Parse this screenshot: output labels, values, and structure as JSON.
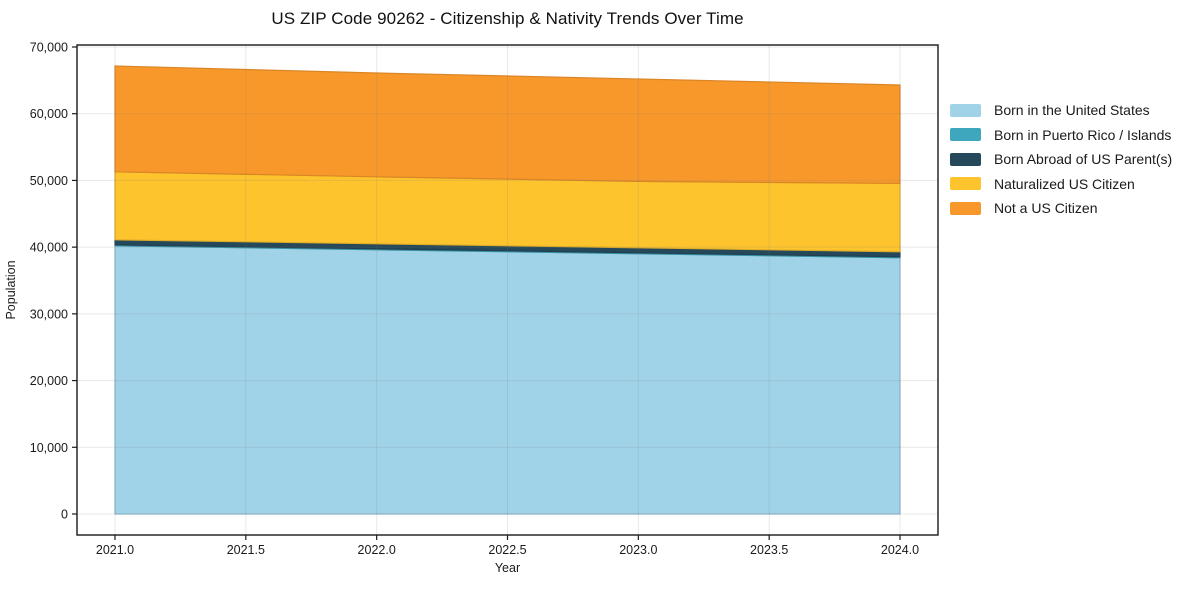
{
  "chart_data": {
    "type": "area",
    "stacked": true,
    "title": "US ZIP Code 90262 - Citizenship & Nativity Trends Over Time",
    "xlabel": "Year",
    "ylabel": "Population",
    "x": [
      2021,
      2022,
      2023,
      2024
    ],
    "series": [
      {
        "id": "born-us",
        "name": "Born in the United States",
        "color": "#A1D3E8",
        "values": [
          40200,
          39600,
          39000,
          38400
        ]
      },
      {
        "id": "born-pr-islands",
        "name": "Born in Puerto Rico / Islands",
        "color": "#3EA6BD",
        "values": [
          150,
          150,
          150,
          150
        ]
      },
      {
        "id": "born-abroad",
        "name": "Born Abroad of US Parent(s)",
        "color": "#25495A",
        "values": [
          750,
          750,
          750,
          750
        ]
      },
      {
        "id": "naturalized",
        "name": "Naturalized US Citizen",
        "color": "#FDC42E",
        "values": [
          10200,
          10050,
          9950,
          10250
        ]
      },
      {
        "id": "not-citizen",
        "name": "Not a US Citizen",
        "color": "#F8982B",
        "values": [
          15850,
          15550,
          15350,
          14750
        ]
      }
    ],
    "stack_totals": [
      67150,
      66100,
      65200,
      64300
    ],
    "ylim": [
      0,
      70000
    ],
    "xlim": [
      2020.85,
      2024.15
    ],
    "xticks": {
      "values": [
        2021.0,
        2021.5,
        2022.0,
        2022.5,
        2023.0,
        2023.5,
        2024.0
      ],
      "labels": [
        "2021.0",
        "2021.5",
        "2022.0",
        "2022.5",
        "2023.0",
        "2023.5",
        "2024.0"
      ]
    },
    "yticks": {
      "values": [
        0,
        10000,
        20000,
        30000,
        40000,
        50000,
        60000,
        70000
      ],
      "labels": [
        "0",
        "10,000",
        "20,000",
        "30,000",
        "40,000",
        "50,000",
        "60,000",
        "70,000"
      ]
    },
    "grid": true,
    "legend_position": "center right",
    "colors": {
      "frame": "#1a1a1a",
      "text": "#1a1a1a",
      "grid": "rgba(120,120,120,0.17)",
      "background": "#ffffff"
    }
  }
}
